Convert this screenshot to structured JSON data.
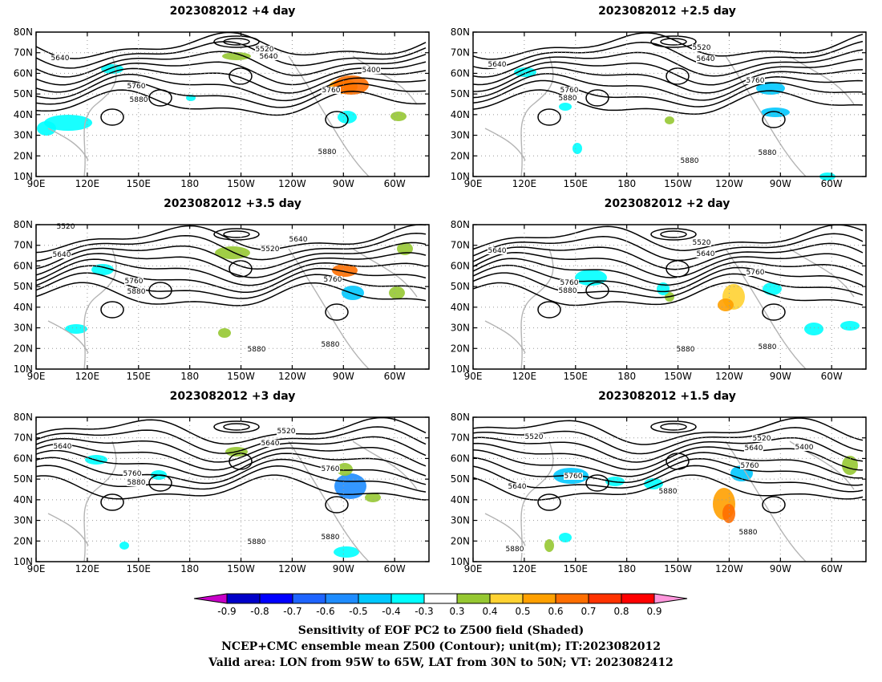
{
  "panels": [
    {
      "title": "2023082012 +4 day"
    },
    {
      "title": "2023082012 +2.5 day"
    },
    {
      "title": "2023082012 +3.5 day"
    },
    {
      "title": "2023082012 +2 day"
    },
    {
      "title": "2023082012 +3 day"
    },
    {
      "title": "2023082012 +1.5 day"
    }
  ],
  "axes": {
    "lat_labels": [
      "80N",
      "70N",
      "60N",
      "50N",
      "40N",
      "30N",
      "20N",
      "10N"
    ],
    "lon_labels": [
      "90E",
      "120E",
      "150E",
      "180",
      "150W",
      "120W",
      "90W",
      "60W"
    ]
  },
  "contour_labels": {
    "p0": [
      "5640",
      "5520",
      "5640",
      "5400",
      "5760",
      "5880",
      "5760",
      "5880"
    ],
    "p1": [
      "5640",
      "5520",
      "5640",
      "5760",
      "5880",
      "5760",
      "5880",
      "5880"
    ],
    "p2": [
      "5520",
      "5640",
      "5520",
      "5640",
      "5760",
      "5880",
      "5760",
      "5880",
      "5880"
    ],
    "p3": [
      "5640",
      "5520",
      "5640",
      "5760",
      "5880",
      "5760",
      "5880",
      "5880"
    ],
    "p4": [
      "5640",
      "5520",
      "5640",
      "5760",
      "5880",
      "5760",
      "5880",
      "5880"
    ],
    "p5": [
      "5520",
      "5520",
      "5640",
      "5400",
      "5640",
      "5760",
      "5880",
      "5760",
      "5880",
      "5880"
    ]
  },
  "colorbar": {
    "labels": [
      "-0.9",
      "-0.8",
      "-0.7",
      "-0.6",
      "-0.5",
      "-0.4",
      "-0.3",
      "0.3",
      "0.4",
      "0.5",
      "0.6",
      "0.7",
      "0.8",
      "0.9"
    ],
    "colors": [
      "#c800c8",
      "#0000c8",
      "#0000ff",
      "#1e64ff",
      "#1e8cff",
      "#00c8ff",
      "#00ffff",
      "#ffffff",
      "#96c832",
      "#ffd232",
      "#ffa000",
      "#ff6e00",
      "#ff3200",
      "#ff0000",
      "#ff96dc"
    ]
  },
  "footer": {
    "line1": "Sensitivity of EOF PC2 to Z500 field (Shaded)",
    "line2": "NCEP+CMC ensemble mean Z500 (Contour); unit(m); IT:2023082012",
    "line3": "Valid area: LON from 95W to 65W, LAT from 30N to 50N; VT: 2023082412"
  }
}
